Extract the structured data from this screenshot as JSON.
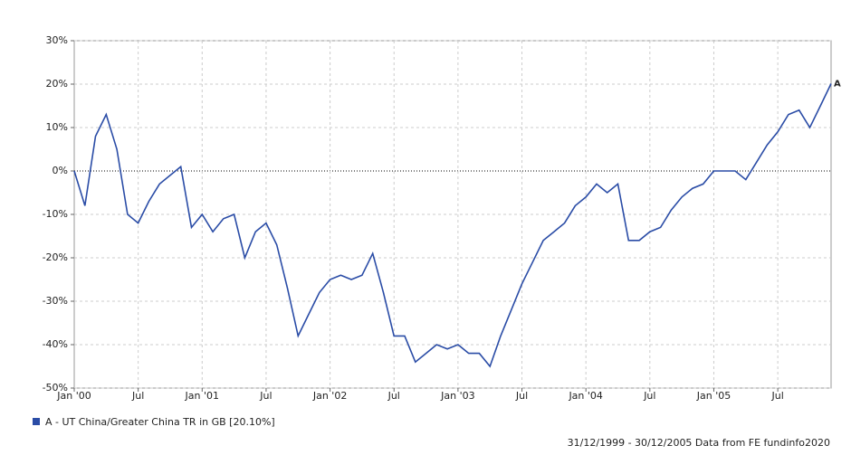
{
  "chart_data": {
    "type": "line",
    "x": [
      "2000-01",
      "2000-02",
      "2000-03",
      "2000-04",
      "2000-05",
      "2000-06",
      "2000-07",
      "2000-08",
      "2000-09",
      "2000-10",
      "2000-11",
      "2000-12",
      "2001-01",
      "2001-02",
      "2001-03",
      "2001-04",
      "2001-05",
      "2001-06",
      "2001-07",
      "2001-08",
      "2001-09",
      "2001-10",
      "2001-11",
      "2001-12",
      "2002-01",
      "2002-02",
      "2002-03",
      "2002-04",
      "2002-05",
      "2002-06",
      "2002-07",
      "2002-08",
      "2002-09",
      "2002-10",
      "2002-11",
      "2002-12",
      "2003-01",
      "2003-02",
      "2003-03",
      "2003-04",
      "2003-05",
      "2003-06",
      "2003-07",
      "2003-08",
      "2003-09",
      "2003-10",
      "2003-11",
      "2003-12",
      "2004-01",
      "2004-02",
      "2004-03",
      "2004-04",
      "2004-05",
      "2004-06",
      "2004-07",
      "2004-08",
      "2004-09",
      "2004-10",
      "2004-11",
      "2004-12",
      "2005-01",
      "2005-02",
      "2005-03",
      "2005-04",
      "2005-05",
      "2005-06",
      "2005-07",
      "2005-08",
      "2005-09",
      "2005-10",
      "2005-11",
      "2005-12"
    ],
    "series": [
      {
        "name": "A - UT China/Greater China TR in GB [20.10%]",
        "color": "#2a4ca6",
        "values": [
          0,
          -8,
          8,
          13,
          5,
          -10,
          -12,
          -7,
          -3,
          -1,
          1,
          -13,
          -10,
          -14,
          -11,
          -10,
          -20,
          -14,
          -12,
          -17,
          -27,
          -38,
          -33,
          -28,
          -25,
          -24,
          -25,
          -24,
          -19,
          -28,
          -38,
          -38,
          -44,
          -42,
          -40,
          -41,
          -40,
          -42,
          -42,
          -45,
          -38,
          -32,
          -26,
          -21,
          -16,
          -14,
          -12,
          -8,
          -6,
          -3,
          -5,
          -3,
          -16,
          -16,
          -14,
          -13,
          -9,
          -6,
          -4,
          -3,
          0,
          0,
          0,
          -2,
          2,
          6,
          9,
          13,
          14,
          10,
          15,
          20.1
        ]
      }
    ],
    "end_label": "A",
    "ylim": [
      -50,
      30
    ],
    "yticks": [
      {
        "value": -50,
        "label": "-50%"
      },
      {
        "value": -40,
        "label": "-40%"
      },
      {
        "value": -30,
        "label": "-30%"
      },
      {
        "value": -20,
        "label": "-20%"
      },
      {
        "value": -10,
        "label": "-10%"
      },
      {
        "value": 0,
        "label": "0%"
      },
      {
        "value": 10,
        "label": "10%"
      },
      {
        "value": 20,
        "label": "20%"
      },
      {
        "value": 30,
        "label": "30%"
      }
    ],
    "xticks": [
      {
        "value": "2000-01",
        "label": "Jan '00"
      },
      {
        "value": "2000-07",
        "label": "Jul"
      },
      {
        "value": "2001-01",
        "label": "Jan '01"
      },
      {
        "value": "2001-07",
        "label": "Jul"
      },
      {
        "value": "2002-01",
        "label": "Jan '02"
      },
      {
        "value": "2002-07",
        "label": "Jul"
      },
      {
        "value": "2003-01",
        "label": "Jan '03"
      },
      {
        "value": "2003-07",
        "label": "Jul"
      },
      {
        "value": "2004-01",
        "label": "Jan '04"
      },
      {
        "value": "2004-07",
        "label": "Jul"
      },
      {
        "value": "2005-01",
        "label": "Jan '05"
      },
      {
        "value": "2005-07",
        "label": "Jul"
      }
    ],
    "grid": true,
    "footer": "31/12/1999 - 30/12/2005 Data from FE fundinfo2020"
  }
}
